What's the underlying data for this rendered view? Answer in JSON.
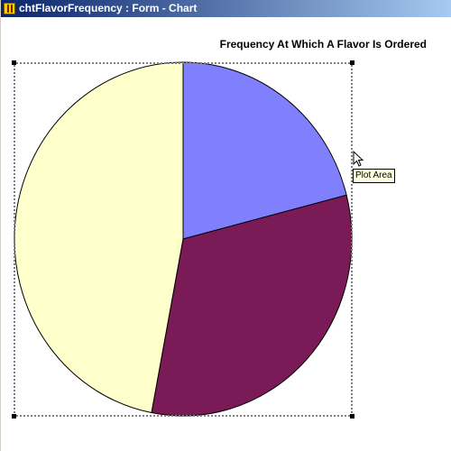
{
  "window": {
    "title": "chtFlavorFrequency : Form - Chart"
  },
  "chart_data": {
    "type": "pie",
    "title": "Frequency At Which A Flavor Is Ordered",
    "slices": [
      {
        "value": 21,
        "color": "#8080ff"
      },
      {
        "value": 32,
        "color": "#7a1a57"
      },
      {
        "value": 47,
        "color": "#ffffcc"
      }
    ],
    "legend": "none"
  },
  "tooltip": {
    "text": "Plot Area"
  }
}
